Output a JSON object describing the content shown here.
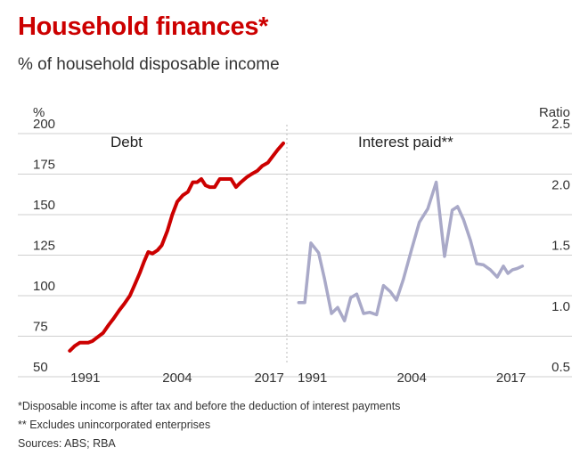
{
  "title": "Household finances*",
  "subtitle": "% of household disposable income",
  "footnotes": {
    "note1": "*Disposable income is after tax and before the deduction of interest payments",
    "note2": "** Excludes unincorporated enterprises",
    "sources": "Sources: ABS; RBA"
  },
  "colors": {
    "title": "#cc0000",
    "debt": "#cc0000",
    "interest": "#a9a9c8",
    "grid": "#cfcfcf",
    "separator": "#bbbbbb"
  },
  "chart_data": [
    {
      "type": "line",
      "title": "Debt",
      "ylabel": "%",
      "ylim": [
        50,
        200
      ],
      "yticks": [
        50,
        75,
        100,
        125,
        150,
        175,
        200
      ],
      "xlim": [
        1988,
        2019.5
      ],
      "xticks": [
        1991,
        2004,
        2017
      ],
      "grid": true,
      "series": [
        {
          "x": [
            1988.8,
            1989.5,
            1990.2,
            1990.8,
            1991.4,
            1992.0,
            1992.6,
            1993.5,
            1994.3,
            1995.0,
            1995.8,
            1996.5,
            1997.3,
            1998.0,
            1998.7,
            1999.3,
            1999.9,
            2000.5,
            2001.2,
            2001.8,
            2002.6,
            2003.3,
            2004.0,
            2004.8,
            2005.5,
            2006.2,
            2006.8,
            2007.4,
            2008.0,
            2008.6,
            2009.3,
            2010.0,
            2010.8,
            2011.6,
            2012.3,
            2013.0,
            2013.8,
            2014.5,
            2015.3,
            2016.0,
            2016.8,
            2017.5,
            2018.2,
            2019.0
          ],
          "values": [
            66,
            69,
            71,
            71,
            71,
            72,
            74,
            77,
            82,
            86,
            91,
            95,
            100,
            107,
            114,
            121,
            127,
            126,
            128,
            131,
            140,
            150,
            158,
            162,
            164,
            170,
            170,
            172,
            168,
            167,
            167,
            172,
            172,
            172,
            167,
            170,
            173,
            175,
            177,
            180,
            182,
            186,
            190,
            194
          ]
        }
      ]
    },
    {
      "type": "line",
      "title": "Interest paid**",
      "ylabel": "Ratio",
      "ylim": [
        0.5,
        2.5
      ],
      "yticks": [
        0.5,
        1.0,
        1.5,
        2.0,
        2.5
      ],
      "xlim": [
        1988,
        2019.5
      ],
      "xticks": [
        1991,
        2004,
        2017
      ],
      "grid": true,
      "series": [
        {
          "x": [
            1989.2,
            1990.0,
            1990.8,
            1991.8,
            1992.6,
            1993.5,
            1994.3,
            1995.2,
            1996.0,
            1996.8,
            1997.7,
            1998.5,
            1999.4,
            2000.3,
            2001.2,
            2002.0,
            2002.9,
            2004.0,
            2005.0,
            2006.1,
            2007.2,
            2008.3,
            2009.3,
            2010.0,
            2010.8,
            2011.7,
            2012.5,
            2013.4,
            2014.3,
            2015.2,
            2016.0,
            2016.6,
            2017.2,
            2017.8,
            2018.5
          ],
          "values": [
            1.11,
            1.11,
            1.6,
            1.52,
            1.3,
            1.02,
            1.07,
            0.96,
            1.15,
            1.18,
            1.02,
            1.03,
            1.01,
            1.25,
            1.2,
            1.13,
            1.3,
            1.55,
            1.77,
            1.88,
            2.1,
            1.49,
            1.87,
            1.9,
            1.79,
            1.62,
            1.43,
            1.42,
            1.38,
            1.32,
            1.41,
            1.35,
            1.38,
            1.39,
            1.41
          ]
        }
      ]
    }
  ]
}
